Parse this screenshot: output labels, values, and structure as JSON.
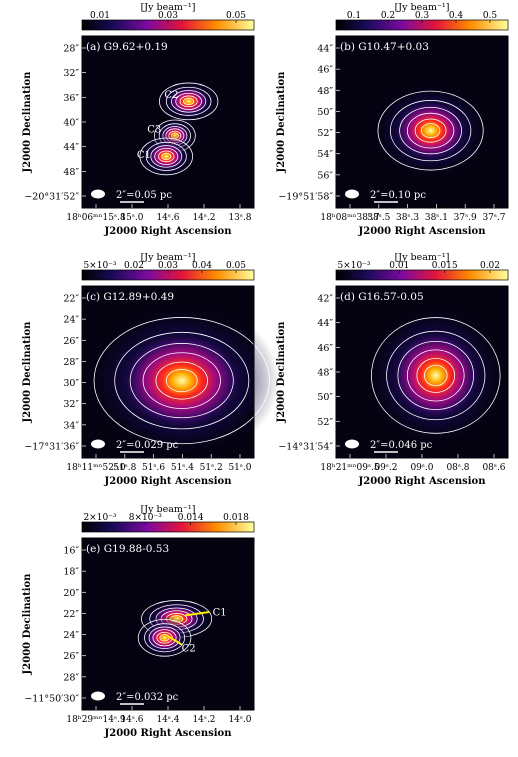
{
  "figure": {
    "unit_label": "[Jy beam⁻¹]",
    "x_axis_label": "J2000 Right Ascension",
    "y_axis_label": "J2000 Declination",
    "panels": [
      {
        "id": "a",
        "title": "(a) G9.62+0.19",
        "colorbar_ticks": [
          "0.01",
          "0.03",
          "0.05"
        ],
        "y_ticks": [
          "28″",
          "32″",
          "36″",
          "40″",
          "44″",
          "48″",
          "−20°31′52″"
        ],
        "x_ticks": [
          "18ʰ06ᵐⁿ15ˢ.8",
          "15ˢ.0",
          "14ˢ.6",
          "14ˢ.2",
          "13ˢ.8"
        ],
        "scale_bar": "2″=0.05 pc",
        "labels": [
          "C2",
          "C3",
          "C1"
        ]
      },
      {
        "id": "b",
        "title": "(b) G10.47+0.03",
        "colorbar_ticks": [
          "0.1",
          "0.2",
          "0.3",
          "0.4",
          "0.5"
        ],
        "y_ticks": [
          "44″",
          "46″",
          "48″",
          "50″",
          "52″",
          "54″",
          "56″",
          "−19°51′58″"
        ],
        "x_ticks": [
          "18ʰ08ᵐⁿ38ˢ.7",
          "38ˢ.5",
          "38ˢ.3",
          "38ˢ.1",
          "37ˢ.9",
          "37ˢ.7"
        ],
        "scale_bar": "2″=0.10 pc",
        "labels": []
      },
      {
        "id": "c",
        "title": "(c) G12.89+0.49",
        "colorbar_ticks": [
          "5×10⁻³",
          "0.02",
          "0.03",
          "0.04",
          "0.05"
        ],
        "y_ticks": [
          "22″",
          "24″",
          "26″",
          "28″",
          "30″",
          "32″",
          "34″",
          "−17°31′36″"
        ],
        "x_ticks": [
          "18ʰ11ᵐⁿ52ˢ.0",
          "51ˢ.8",
          "51ˢ.6",
          "51ˢ.4",
          "51ˢ.2",
          "51ˢ.0"
        ],
        "scale_bar": "2″=0.029 pc",
        "labels": []
      },
      {
        "id": "d",
        "title": "(d) G16.57-0.05",
        "colorbar_ticks": [
          "5×10⁻³",
          "0.01",
          "0.015",
          "0.02"
        ],
        "y_ticks": [
          "42″",
          "44″",
          "46″",
          "48″",
          "50″",
          "52″",
          "−14°31′54″"
        ],
        "x_ticks": [
          "18ʰ21ᵐⁿ09ˢ.5",
          "09ˢ.2",
          "09ˢ.0",
          "08ˢ.8",
          "08ˢ.6"
        ],
        "scale_bar": "2″=0.046 pc",
        "labels": []
      },
      {
        "id": "e",
        "title": "(e) G19.88-0.53",
        "colorbar_ticks": [
          "2×10⁻³",
          "8×10⁻³",
          "0.014",
          "0.018"
        ],
        "y_ticks": [
          "16″",
          "18″",
          "20″",
          "22″",
          "24″",
          "26″",
          "28″",
          "−11°50′30″"
        ],
        "x_ticks": [
          "18ʰ29ᵐⁿ14ˢ.9",
          "14ˢ.6",
          "14ˢ.4",
          "14ˢ.2",
          "14ˢ.0"
        ],
        "scale_bar": "2″=0.032 pc",
        "labels": [
          "C1",
          "C2"
        ]
      }
    ],
    "colors": {
      "background": "#000000",
      "contour": "#ffffff",
      "arrow": "#ffee00"
    }
  }
}
